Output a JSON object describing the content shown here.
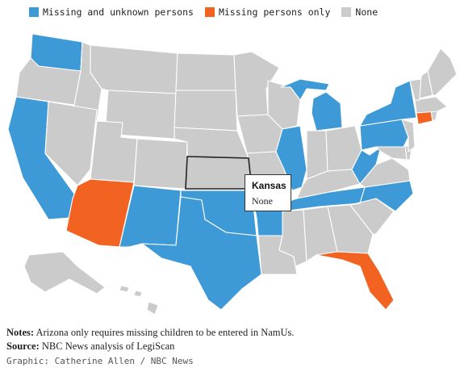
{
  "legend": [
    {
      "label": "Missing and unknown persons",
      "color": "#3d9ad6"
    },
    {
      "label": "Missing persons only",
      "color": "#f26322"
    },
    {
      "label": "None",
      "color": "#cbcbcb"
    }
  ],
  "colors": {
    "both": "#3d9ad6",
    "missing_only": "#f26322",
    "none": "#cbcbcb"
  },
  "states": {
    "both": [
      "Washington",
      "California",
      "New Mexico",
      "Texas",
      "Oklahoma",
      "Arkansas",
      "Illinois",
      "Michigan",
      "Tennessee",
      "North Carolina",
      "West Virginia",
      "Pennsylvania",
      "New York"
    ],
    "missing_only": [
      "Arizona",
      "Florida",
      "Connecticut"
    ],
    "none": [
      "Oregon",
      "Idaho",
      "Montana",
      "Wyoming",
      "Nevada",
      "Utah",
      "Colorado",
      "North Dakota",
      "South Dakota",
      "Nebraska",
      "Kansas",
      "Minnesota",
      "Iowa",
      "Missouri",
      "Wisconsin",
      "Indiana",
      "Ohio",
      "Kentucky",
      "Louisiana",
      "Mississippi",
      "Alabama",
      "Georgia",
      "South Carolina",
      "Virginia",
      "Maryland",
      "Delaware",
      "New Jersey",
      "Massachusetts",
      "Vermont",
      "New Hampshire",
      "Maine",
      "Rhode Island",
      "Alaska",
      "Hawaii"
    ]
  },
  "tooltip": {
    "state": "Kansas",
    "value": "None"
  },
  "footer": {
    "notes_label": "Notes:",
    "notes_text": " Arizona only requires missing children to be entered in NamUs.",
    "source_label": "Source:",
    "source_text": " NBC News analysis of LegiScan",
    "credit": "Graphic: Catherine Allen / NBC News"
  }
}
